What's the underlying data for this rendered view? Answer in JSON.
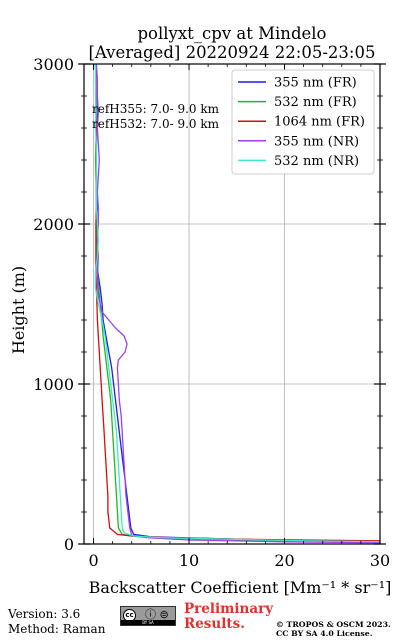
{
  "title": {
    "line1": "pollyxt_cpv at Mindelo",
    "line2": "[Averaged] 20220924 22:05-23:05"
  },
  "annotations": {
    "refH355": "refH355:  7.0- 9.0 km",
    "refH532": "refH532:  7.0- 9.0 km"
  },
  "footer": {
    "version": "Version: 3.6",
    "method": "Method: Raman",
    "cc_icon_text": "cc",
    "cc_icons": "ⓘ ⊜",
    "cc_label": "BY   SA",
    "preliminary_line1": "Preliminary",
    "preliminary_line2": "Results.",
    "copyright_line1": "© TROPOS & OSCM 2023.",
    "copyright_line2": "CC BY SA 4.0 License."
  },
  "colors": {
    "prelim": "#e03030",
    "grid": "#b0b0b0"
  },
  "chart_data": {
    "type": "line",
    "xlabel": "Backscatter Coefficient [Mm⁻¹ * sr⁻¹]",
    "ylabel": "Height (m)",
    "xlim": [
      -1,
      30
    ],
    "ylim": [
      0,
      3000
    ],
    "xticks": [
      0,
      10,
      20,
      30
    ],
    "yticks": [
      0,
      1000,
      2000,
      3000
    ],
    "grid": true,
    "legend_position": "top-right",
    "series": [
      {
        "name": "355 nm (FR)",
        "color": "#1f1fe8",
        "points": [
          [
            30,
            10
          ],
          [
            25,
            15
          ],
          [
            18,
            25
          ],
          [
            12,
            35
          ],
          [
            6,
            45
          ],
          [
            4.2,
            60
          ],
          [
            3.9,
            100
          ],
          [
            3.7,
            200
          ],
          [
            3.5,
            300
          ],
          [
            3.3,
            400
          ],
          [
            3.1,
            500
          ],
          [
            2.9,
            600
          ],
          [
            2.7,
            700
          ],
          [
            2.5,
            800
          ],
          [
            2.3,
            900
          ],
          [
            2.1,
            1000
          ],
          [
            1.9,
            1100
          ],
          [
            1.6,
            1200
          ],
          [
            1.3,
            1300
          ],
          [
            1.0,
            1400
          ],
          [
            0.9,
            1500
          ],
          [
            0.7,
            1600
          ],
          [
            0.45,
            1700
          ],
          [
            0.35,
            1800
          ],
          [
            0.35,
            1900
          ],
          [
            0.35,
            2000
          ],
          [
            0.35,
            2100
          ],
          [
            0.3,
            2200
          ],
          [
            0.3,
            2300
          ],
          [
            0.25,
            2400
          ],
          [
            0.3,
            2500
          ],
          [
            0.35,
            2600
          ],
          [
            0.35,
            2700
          ],
          [
            0.3,
            2800
          ],
          [
            0.25,
            2900
          ],
          [
            0.2,
            3000
          ]
        ]
      },
      {
        "name": "532 nm (FR)",
        "color": "#22b822",
        "points": [
          [
            30,
            12
          ],
          [
            20,
            20
          ],
          [
            12,
            30
          ],
          [
            6,
            40
          ],
          [
            4.0,
            50
          ],
          [
            3.0,
            60
          ],
          [
            2.6,
            100
          ],
          [
            2.5,
            200
          ],
          [
            2.4,
            300
          ],
          [
            2.3,
            400
          ],
          [
            2.2,
            500
          ],
          [
            2.1,
            600
          ],
          [
            2.0,
            700
          ],
          [
            1.9,
            800
          ],
          [
            1.8,
            900
          ],
          [
            1.6,
            1000
          ],
          [
            1.4,
            1100
          ],
          [
            1.2,
            1200
          ],
          [
            1.0,
            1300
          ],
          [
            0.85,
            1400
          ],
          [
            0.7,
            1500
          ],
          [
            0.55,
            1600
          ],
          [
            0.4,
            1700
          ],
          [
            0.3,
            1800
          ],
          [
            0.3,
            1900
          ],
          [
            0.3,
            2000
          ],
          [
            0.3,
            2100
          ],
          [
            0.3,
            2200
          ],
          [
            0.25,
            2300
          ],
          [
            0.2,
            2400
          ],
          [
            0.25,
            2500
          ],
          [
            0.3,
            2600
          ],
          [
            0.3,
            2700
          ],
          [
            0.25,
            2800
          ],
          [
            0.25,
            2900
          ],
          [
            0.2,
            3000
          ]
        ]
      },
      {
        "name": "1064 nm (FR)",
        "color": "#cc1111",
        "points": [
          [
            30,
            20
          ],
          [
            22,
            25
          ],
          [
            15,
            30
          ],
          [
            8,
            40
          ],
          [
            4.0,
            50
          ],
          [
            2.5,
            60
          ],
          [
            1.7,
            100
          ],
          [
            1.5,
            200
          ],
          [
            1.5,
            300
          ],
          [
            1.4,
            400
          ],
          [
            1.3,
            500
          ],
          [
            1.2,
            600
          ],
          [
            1.1,
            700
          ],
          [
            1.0,
            800
          ],
          [
            0.9,
            900
          ],
          [
            0.8,
            1000
          ],
          [
            0.7,
            1100
          ],
          [
            0.6,
            1200
          ],
          [
            0.5,
            1300
          ],
          [
            0.4,
            1400
          ],
          [
            0.35,
            1500
          ],
          [
            0.3,
            1600
          ],
          [
            0.25,
            1700
          ],
          [
            0.25,
            1800
          ],
          [
            0.25,
            1900
          ],
          [
            0.25,
            2000
          ],
          [
            0.3,
            2100
          ],
          [
            0.3,
            2200
          ],
          [
            0.3,
            2300
          ],
          [
            0.3,
            2400
          ],
          [
            0.3,
            2500
          ],
          [
            0.3,
            2600
          ],
          [
            0.25,
            2700
          ],
          [
            0.25,
            2800
          ],
          [
            0.25,
            2900
          ],
          [
            0.25,
            3000
          ]
        ]
      },
      {
        "name": "355 nm (NR)",
        "color": "#a040e8",
        "points": [
          [
            30,
            8
          ],
          [
            20,
            14
          ],
          [
            10,
            25
          ],
          [
            5.5,
            40
          ],
          [
            4.0,
            55
          ],
          [
            3.8,
            100
          ],
          [
            3.6,
            200
          ],
          [
            3.4,
            300
          ],
          [
            3.3,
            400
          ],
          [
            3.2,
            500
          ],
          [
            3.1,
            600
          ],
          [
            3.0,
            700
          ],
          [
            2.9,
            800
          ],
          [
            2.7,
            900
          ],
          [
            2.6,
            1000
          ],
          [
            2.5,
            1100
          ],
          [
            2.6,
            1150
          ],
          [
            3.3,
            1200
          ],
          [
            3.5,
            1250
          ],
          [
            3.2,
            1300
          ],
          [
            2.3,
            1350
          ],
          [
            1.6,
            1400
          ],
          [
            0.9,
            1450
          ],
          [
            0.5,
            1550
          ],
          [
            0.4,
            1650
          ],
          [
            0.5,
            1800
          ],
          [
            0.4,
            1900
          ],
          [
            0.5,
            2000
          ],
          [
            0.5,
            2100
          ],
          [
            0.4,
            2200
          ],
          [
            0.5,
            2300
          ],
          [
            0.6,
            2400
          ],
          [
            0.5,
            2500
          ],
          [
            0.4,
            2600
          ],
          [
            0.5,
            2700
          ],
          [
            0.4,
            2800
          ],
          [
            0.4,
            2900
          ],
          [
            0.3,
            3000
          ]
        ]
      },
      {
        "name": "532 nm (NR)",
        "color": "#40e8c8",
        "points": [
          [
            30,
            15
          ],
          [
            22,
            20
          ],
          [
            14,
            30
          ],
          [
            7,
            40
          ],
          [
            4.2,
            50
          ],
          [
            3.2,
            70
          ],
          [
            3.0,
            100
          ],
          [
            2.9,
            200
          ],
          [
            2.8,
            300
          ],
          [
            2.7,
            400
          ],
          [
            2.6,
            500
          ],
          [
            2.5,
            600
          ],
          [
            2.4,
            700
          ],
          [
            2.2,
            800
          ],
          [
            2.0,
            900
          ],
          [
            1.8,
            1000
          ],
          [
            1.6,
            1100
          ],
          [
            1.4,
            1200
          ],
          [
            1.2,
            1300
          ],
          [
            0.9,
            1400
          ],
          [
            0.5,
            1500
          ],
          [
            0.2,
            1600
          ],
          [
            0.2,
            1700
          ],
          [
            0.4,
            1800
          ],
          [
            0.5,
            1900
          ],
          [
            0.4,
            2000
          ],
          [
            0.3,
            2100
          ],
          [
            0.3,
            2200
          ],
          [
            0.3,
            2300
          ],
          [
            0.3,
            2400
          ],
          [
            0.3,
            2500
          ],
          [
            0.2,
            2600
          ],
          [
            0.25,
            2700
          ],
          [
            0.25,
            2800
          ],
          [
            0.2,
            2900
          ],
          [
            0.2,
            3000
          ]
        ]
      }
    ]
  }
}
